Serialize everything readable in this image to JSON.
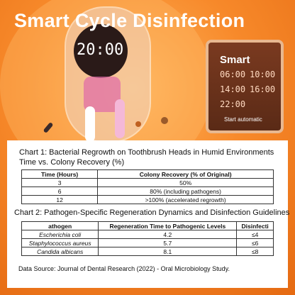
{
  "header": {
    "title": "Smart Cycle Disinfection"
  },
  "device": {
    "display": "20:00"
  },
  "panel": {
    "title": "Smart",
    "times": [
      "06:00",
      "10:00",
      "14:00",
      "16:00",
      "22:00"
    ],
    "caption": "Start automatic"
  },
  "chart1": {
    "title": "Chart 1: Bacterial Regrowth on Toothbrush Heads in Humid Environments",
    "subtitle": "Time vs. Colony Recovery (%)",
    "table": {
      "header": [
        "Time (Hours)",
        "Colony Recovery (% of Original)"
      ],
      "rows": [
        [
          "3",
          "50%"
        ],
        [
          "6",
          "80% (including pathogens)"
        ],
        [
          "12",
          ">100% (accelerated regrowth)"
        ]
      ]
    }
  },
  "chart2": {
    "title": "Chart 2: Pathogen-Specific Regeneration Dynamics and Disinfection Guidelines",
    "table": {
      "header": [
        "athogen",
        "Regeneration Time to Pathogenic Levels",
        "Disinfecti"
      ],
      "rows": [
        [
          "Escherichia coli",
          "4.2",
          "≤4"
        ],
        [
          "Staphylococcus aureus",
          "5.7",
          "≤6"
        ],
        [
          "Candida albicans",
          "8.1",
          "≤8"
        ]
      ]
    }
  },
  "source": "Data Source: Journal of Dental Research (2022) - Oral Microbiology Study."
}
